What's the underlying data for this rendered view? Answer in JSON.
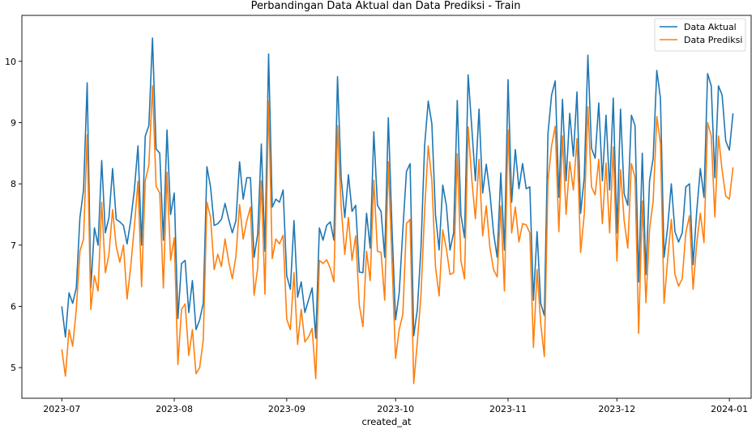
{
  "chart_data": {
    "type": "line",
    "title": "Perbandingan Data Aktual dan Data Prediksi - Train",
    "xlabel": "created_at",
    "ylabel": "",
    "x_start": "2023-07-01",
    "x_ticks": [
      {
        "label": "2023-07",
        "date": "2023-07-01"
      },
      {
        "label": "2023-08",
        "date": "2023-08-01"
      },
      {
        "label": "2023-09",
        "date": "2023-09-01"
      },
      {
        "label": "2023-10",
        "date": "2023-10-01"
      },
      {
        "label": "2023-11",
        "date": "2023-11-01"
      },
      {
        "label": "2023-12",
        "date": "2023-12-01"
      },
      {
        "label": "2024-01",
        "date": "2024-01-01"
      }
    ],
    "x_range": [
      "2023-06-20",
      "2024-01-07"
    ],
    "ylim": [
      4.5,
      10.75
    ],
    "y_ticks": [
      5,
      6,
      7,
      8,
      9,
      10
    ],
    "legend_position": "upper right",
    "grid": false,
    "series": [
      {
        "name": "Data Aktual",
        "color": "#1f77b4",
        "values": [
          6.0,
          5.5,
          6.22,
          6.05,
          6.3,
          7.45,
          7.9,
          9.65,
          6.3,
          7.28,
          7.0,
          8.38,
          7.2,
          7.45,
          8.25,
          7.42,
          7.38,
          7.32,
          7.02,
          7.4,
          7.9,
          8.62,
          7.0,
          8.78,
          8.95,
          10.38,
          8.57,
          8.5,
          7.08,
          8.88,
          7.5,
          7.85,
          5.8,
          6.7,
          6.75,
          5.9,
          6.42,
          5.62,
          5.78,
          6.05,
          8.28,
          7.95,
          7.32,
          7.35,
          7.42,
          7.68,
          7.42,
          7.2,
          7.4,
          8.36,
          7.75,
          8.1,
          8.1,
          6.8,
          7.18,
          8.65,
          6.9,
          10.12,
          7.62,
          7.75,
          7.7,
          7.9,
          6.5,
          6.28,
          7.4,
          6.15,
          6.4,
          5.9,
          6.1,
          6.3,
          5.48,
          7.28,
          7.08,
          7.32,
          7.38,
          7.08,
          9.75,
          8.1,
          7.45,
          8.15,
          7.55,
          7.65,
          6.56,
          6.55,
          7.52,
          6.95,
          8.85,
          7.65,
          7.55,
          6.8,
          9.08,
          7.3,
          5.78,
          6.22,
          7.25,
          8.2,
          8.33,
          5.52,
          5.95,
          6.95,
          8.62,
          9.35,
          8.98,
          7.5,
          6.92,
          7.98,
          7.65,
          6.92,
          7.2,
          9.36,
          7.5,
          7.12,
          9.78,
          8.92,
          8.05,
          9.22,
          7.85,
          8.32,
          7.85,
          7.2,
          6.8,
          8.18,
          6.92,
          9.7,
          7.7,
          8.56,
          7.92,
          8.33,
          7.92,
          7.95,
          6.1,
          7.22,
          6.05,
          5.85,
          8.82,
          9.45,
          9.68,
          7.78,
          9.38,
          8.05,
          9.15,
          8.45,
          9.5,
          7.52,
          8.1,
          10.1,
          8.58,
          8.42,
          9.32,
          8.05,
          9.12,
          7.9,
          9.4,
          7.2,
          9.22,
          7.84,
          7.65,
          9.12,
          8.95,
          6.4,
          8.5,
          6.52,
          8.05,
          8.42,
          9.85,
          9.4,
          6.8,
          7.3,
          8.0,
          7.22,
          7.05,
          7.2,
          7.95,
          8.0,
          6.68,
          7.55,
          8.25,
          7.78,
          9.8,
          9.6,
          8.1,
          9.6,
          9.45,
          8.7,
          8.55,
          9.15
        ]
      },
      {
        "name": "Data Prediksi",
        "color": "#ff7f0e",
        "values": [
          5.3,
          4.86,
          5.62,
          5.35,
          5.95,
          6.9,
          7.1,
          8.8,
          5.95,
          6.5,
          6.25,
          7.7,
          6.55,
          6.85,
          7.58,
          6.98,
          6.72,
          7.0,
          6.12,
          6.65,
          7.3,
          8.04,
          6.32,
          8.05,
          8.3,
          9.6,
          7.96,
          7.85,
          6.3,
          8.19,
          6.75,
          7.12,
          5.05,
          5.95,
          6.04,
          5.2,
          5.62,
          4.9,
          5.0,
          5.45,
          7.7,
          7.45,
          6.6,
          6.85,
          6.65,
          7.1,
          6.73,
          6.45,
          6.82,
          7.66,
          7.1,
          7.4,
          7.62,
          6.18,
          6.63,
          8.05,
          6.2,
          9.35,
          6.78,
          7.1,
          7.02,
          7.16,
          5.79,
          5.62,
          6.55,
          5.38,
          5.95,
          5.42,
          5.5,
          5.64,
          4.82,
          6.75,
          6.7,
          6.76,
          6.62,
          6.4,
          8.95,
          7.62,
          6.85,
          7.45,
          6.75,
          7.15,
          6.02,
          5.67,
          6.9,
          6.42,
          8.06,
          6.9,
          6.88,
          6.1,
          8.36,
          6.75,
          5.15,
          5.62,
          5.87,
          7.35,
          7.42,
          4.74,
          5.42,
          6.18,
          7.55,
          8.62,
          8.05,
          6.65,
          6.17,
          7.25,
          6.94,
          6.52,
          6.55,
          8.49,
          6.75,
          6.45,
          8.93,
          8.08,
          7.43,
          8.4,
          7.15,
          7.64,
          6.96,
          6.6,
          6.48,
          7.64,
          6.25,
          8.88,
          7.2,
          7.62,
          7.05,
          7.35,
          7.33,
          7.2,
          5.33,
          6.6,
          5.72,
          5.18,
          8.04,
          8.62,
          8.94,
          7.22,
          8.78,
          7.5,
          8.36,
          7.9,
          8.74,
          6.88,
          7.5,
          9.26,
          7.95,
          7.82,
          8.4,
          7.35,
          8.34,
          7.2,
          8.6,
          6.74,
          8.23,
          7.4,
          6.95,
          8.33,
          8.1,
          5.56,
          7.72,
          6.06,
          7.26,
          7.72,
          9.1,
          8.66,
          6.05,
          6.77,
          7.42,
          6.52,
          6.33,
          6.45,
          7.2,
          7.48,
          6.28,
          7.03,
          7.52,
          7.04,
          9.0,
          8.78,
          7.46,
          8.78,
          8.22,
          7.8,
          7.75,
          8.27
        ]
      }
    ]
  }
}
